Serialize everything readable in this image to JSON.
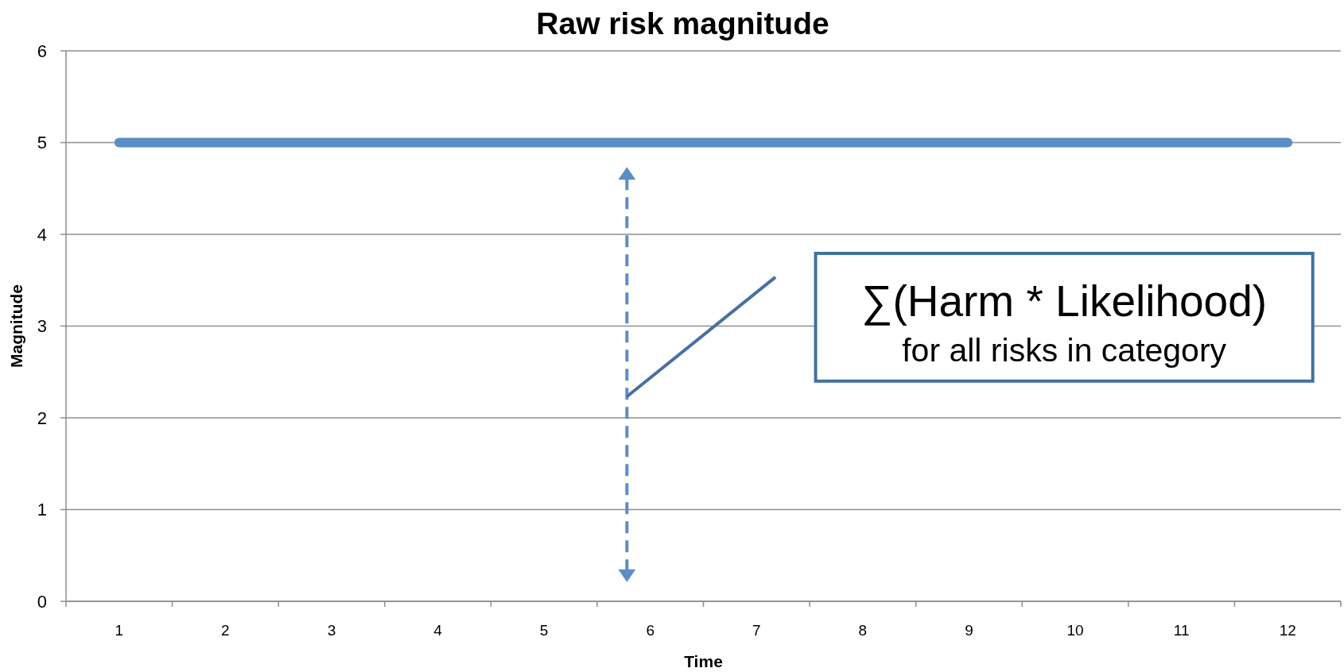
{
  "chart_data": {
    "type": "line",
    "title": "Raw risk magnitude",
    "xlabel": "Time",
    "ylabel": "Magnitude",
    "categories": [
      "1",
      "2",
      "3",
      "4",
      "5",
      "6",
      "7",
      "8",
      "9",
      "10",
      "11",
      "12"
    ],
    "series": [
      {
        "color": "#5b8ec7",
        "values": [
          5,
          5,
          5,
          5,
          5,
          5,
          5,
          5,
          5,
          5,
          5,
          5
        ]
      }
    ],
    "ylim": [
      0,
      6
    ],
    "yticks": [
      0,
      1,
      2,
      3,
      4,
      5,
      6
    ],
    "grid": "y",
    "line_style": "solid",
    "annotations": [
      "∑(Harm * Likelihood)",
      "for all risks in category"
    ]
  }
}
